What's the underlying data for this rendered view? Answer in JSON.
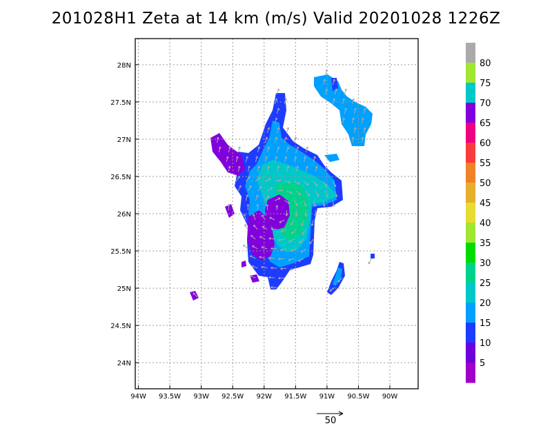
{
  "title": "201028H1  Zeta at 14 km (m/s) Valid 20201028  1226Z",
  "axes": {
    "x_ticks": [
      "94W",
      "93.5W",
      "93W",
      "92.5W",
      "92W",
      "91.5W",
      "91W",
      "90.5W",
      "90W"
    ],
    "x_values": [
      -94,
      -93.5,
      -93,
      -92.5,
      -92,
      -91.5,
      -91,
      -90.5,
      -90
    ],
    "y_ticks": [
      "28N",
      "27.5N",
      "27N",
      "26.5N",
      "26N",
      "25.5N",
      "25N",
      "24.5N",
      "24N"
    ],
    "y_values": [
      28,
      27.5,
      27,
      26.5,
      26,
      25.5,
      25,
      24.5,
      24
    ],
    "lon_range": [
      -94.05,
      -89.55
    ],
    "lat_range": [
      23.65,
      28.35
    ],
    "grid": "dotted"
  },
  "colorbar": {
    "labels": [
      "5",
      "10",
      "15",
      "20",
      "25",
      "30",
      "35",
      "40",
      "45",
      "50",
      "55",
      "60",
      "65",
      "70",
      "75",
      "80"
    ],
    "colors": [
      "#a000c8",
      "#6e00dc",
      "#1e3cff",
      "#00a0ff",
      "#00c8c8",
      "#00d28c",
      "#00dc00",
      "#a0e632",
      "#e6dc32",
      "#e6af2d",
      "#f08228",
      "#fa3c3c",
      "#f00082",
      "#8200dc",
      "#00c8c8",
      "#a0e632",
      "#aaaaaa"
    ]
  },
  "reference_vector": {
    "label": "50",
    "value": 50
  },
  "colors": {
    "vector": "#aaaaaa",
    "grid": "#999999"
  }
}
